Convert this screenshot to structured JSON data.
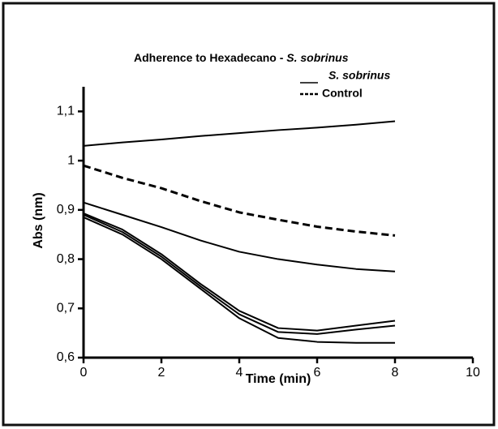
{
  "chart_data": {
    "type": "line",
    "title": "Adherence to Hexadecano  -",
    "title_italic": "S. sobrinus",
    "xlabel": "Time (min)",
    "ylabel": "Abs (nm)",
    "x": [
      0,
      1,
      2,
      3,
      4,
      5,
      6,
      7,
      8
    ],
    "xlim": [
      0,
      10
    ],
    "xticks": [
      0,
      2,
      4,
      6,
      8,
      10
    ],
    "ylim": [
      0.6,
      1.15
    ],
    "yticks": [
      {
        "value": 0.6,
        "label": "0,6"
      },
      {
        "value": 0.7,
        "label": "0,7"
      },
      {
        "value": 0.8,
        "label": "0,8"
      },
      {
        "value": 0.9,
        "label": "0,9"
      },
      1,
      {
        "value": 1.1,
        "label": "1,1"
      }
    ],
    "grid": false,
    "series": [
      {
        "name": "S. sobrinus",
        "color": "#000000",
        "dash": false,
        "values": [
          1.03,
          1.037,
          1.043,
          1.05,
          1.056,
          1.062,
          1.067,
          1.073,
          1.08
        ]
      },
      {
        "name": "Control",
        "color": "#000000",
        "dash": true,
        "values": [
          0.99,
          0.965,
          0.944,
          0.918,
          0.895,
          0.88,
          0.866,
          0.856,
          0.848
        ]
      },
      {
        "color": "#000000",
        "dash": false,
        "values": [
          0.915,
          0.89,
          0.865,
          0.838,
          0.815,
          0.8,
          0.789,
          0.78,
          0.775
        ]
      },
      {
        "color": "#000000",
        "dash": false,
        "values": [
          0.893,
          0.86,
          0.81,
          0.75,
          0.695,
          0.66,
          0.655,
          0.665,
          0.675
        ]
      },
      {
        "color": "#000000",
        "dash": false,
        "values": [
          0.89,
          0.855,
          0.805,
          0.745,
          0.688,
          0.652,
          0.648,
          0.657,
          0.665
        ]
      },
      {
        "color": "#000000",
        "dash": false,
        "values": [
          0.885,
          0.85,
          0.8,
          0.74,
          0.68,
          0.64,
          0.632,
          0.63,
          0.63
        ]
      }
    ]
  }
}
